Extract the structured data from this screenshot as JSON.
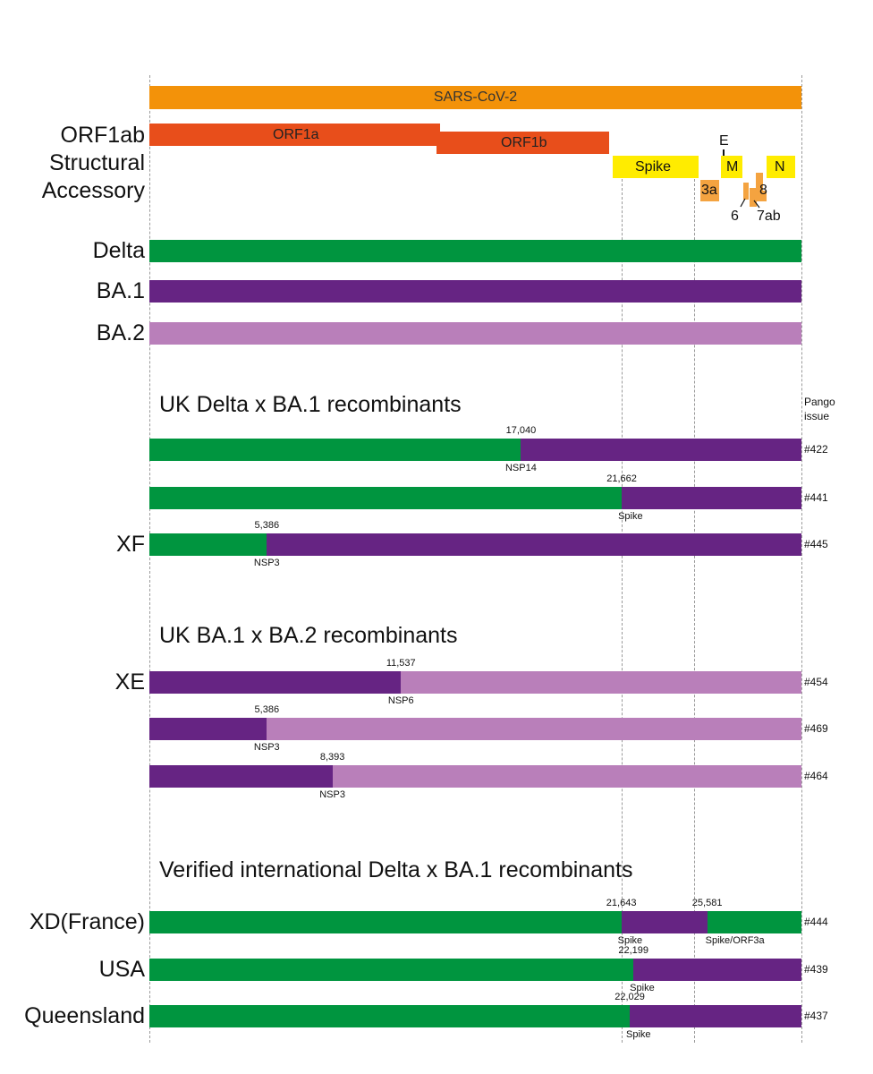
{
  "genome_length": 29903,
  "colors": {
    "genome": "#f39209",
    "orf1": "#e84e1b",
    "structural": "#ffec00",
    "accessory": "#f4a340",
    "delta": "#00953f",
    "ba1": "#662483",
    "ba2": "#b97fba"
  },
  "genome_map": {
    "genome_label": "SARS-CoV-2",
    "row_labels": {
      "orf1ab": "ORF1ab",
      "structural": "Structural",
      "accessory": "Accessory"
    },
    "orf1a_label": "ORF1a",
    "orf1b_label": "ORF1b",
    "structural_genes": [
      "Spike",
      "E",
      "M",
      "N"
    ],
    "accessory_genes": [
      "3a",
      "6",
      "7ab",
      "8"
    ]
  },
  "parents": [
    {
      "label": "Delta",
      "lineage": "delta"
    },
    {
      "label": "BA.1",
      "lineage": "ba1"
    },
    {
      "label": "BA.2",
      "lineage": "ba2"
    }
  ],
  "pango_header": [
    "Pango",
    "issue"
  ],
  "sections": [
    {
      "title": "UK Delta x BA.1 recombinants",
      "rows": [
        {
          "label": "",
          "issue": "#422",
          "segments": [
            {
              "lineage": "delta",
              "start": 1,
              "end": 17040
            },
            {
              "lineage": "ba1",
              "start": 17040,
              "end": 29903
            }
          ],
          "breakpoints": [
            {
              "pos": 17040,
              "label": "17,040",
              "region": "NSP14"
            }
          ]
        },
        {
          "label": "",
          "issue": "#441",
          "segments": [
            {
              "lineage": "delta",
              "start": 1,
              "end": 21662
            },
            {
              "lineage": "ba1",
              "start": 21662,
              "end": 29903
            }
          ],
          "breakpoints": [
            {
              "pos": 21662,
              "label": "21,662",
              "region": "Spike"
            }
          ]
        },
        {
          "label": "XF",
          "issue": "#445",
          "segments": [
            {
              "lineage": "delta",
              "start": 1,
              "end": 5386
            },
            {
              "lineage": "ba1",
              "start": 5386,
              "end": 29903
            }
          ],
          "breakpoints": [
            {
              "pos": 5386,
              "label": "5,386",
              "region": "NSP3"
            }
          ]
        }
      ]
    },
    {
      "title": "UK BA.1 x BA.2 recombinants",
      "rows": [
        {
          "label": "XE",
          "issue": "#454",
          "segments": [
            {
              "lineage": "ba1",
              "start": 1,
              "end": 11537
            },
            {
              "lineage": "ba2",
              "start": 11537,
              "end": 29903
            }
          ],
          "breakpoints": [
            {
              "pos": 11537,
              "label": "11,537",
              "region": "NSP6"
            }
          ]
        },
        {
          "label": "",
          "issue": "#469",
          "segments": [
            {
              "lineage": "ba1",
              "start": 1,
              "end": 5386
            },
            {
              "lineage": "ba2",
              "start": 5386,
              "end": 29903
            }
          ],
          "breakpoints": [
            {
              "pos": 5386,
              "label": "5,386",
              "region": "NSP3"
            }
          ]
        },
        {
          "label": "",
          "issue": "#464",
          "segments": [
            {
              "lineage": "ba1",
              "start": 1,
              "end": 8393
            },
            {
              "lineage": "ba2",
              "start": 8393,
              "end": 29903
            }
          ],
          "breakpoints": [
            {
              "pos": 8393,
              "label": "8,393",
              "region": "NSP3"
            }
          ]
        }
      ]
    },
    {
      "title": "Verified international Delta x BA.1 recombinants",
      "rows": [
        {
          "label": "XD(France)",
          "issue": "#444",
          "segments": [
            {
              "lineage": "delta",
              "start": 1,
              "end": 21643
            },
            {
              "lineage": "ba1",
              "start": 21643,
              "end": 25581
            },
            {
              "lineage": "delta",
              "start": 25581,
              "end": 29903
            }
          ],
          "breakpoints": [
            {
              "pos": 21643,
              "label": "21,643",
              "region": "Spike"
            },
            {
              "pos": 25581,
              "label": "25,581",
              "region": "Spike/ORF3a"
            }
          ]
        },
        {
          "label": "USA",
          "issue": "#439",
          "segments": [
            {
              "lineage": "delta",
              "start": 1,
              "end": 22199
            },
            {
              "lineage": "ba1",
              "start": 22199,
              "end": 29903
            }
          ],
          "breakpoints": [
            {
              "pos": 22199,
              "label": "22,199",
              "region": "Spike"
            }
          ]
        },
        {
          "label": "Queensland",
          "issue": "#437",
          "segments": [
            {
              "lineage": "delta",
              "start": 1,
              "end": 22029
            },
            {
              "lineage": "ba1",
              "start": 22029,
              "end": 29903
            }
          ],
          "breakpoints": [
            {
              "pos": 22029,
              "label": "22,029",
              "region": "Spike"
            }
          ]
        }
      ]
    }
  ]
}
